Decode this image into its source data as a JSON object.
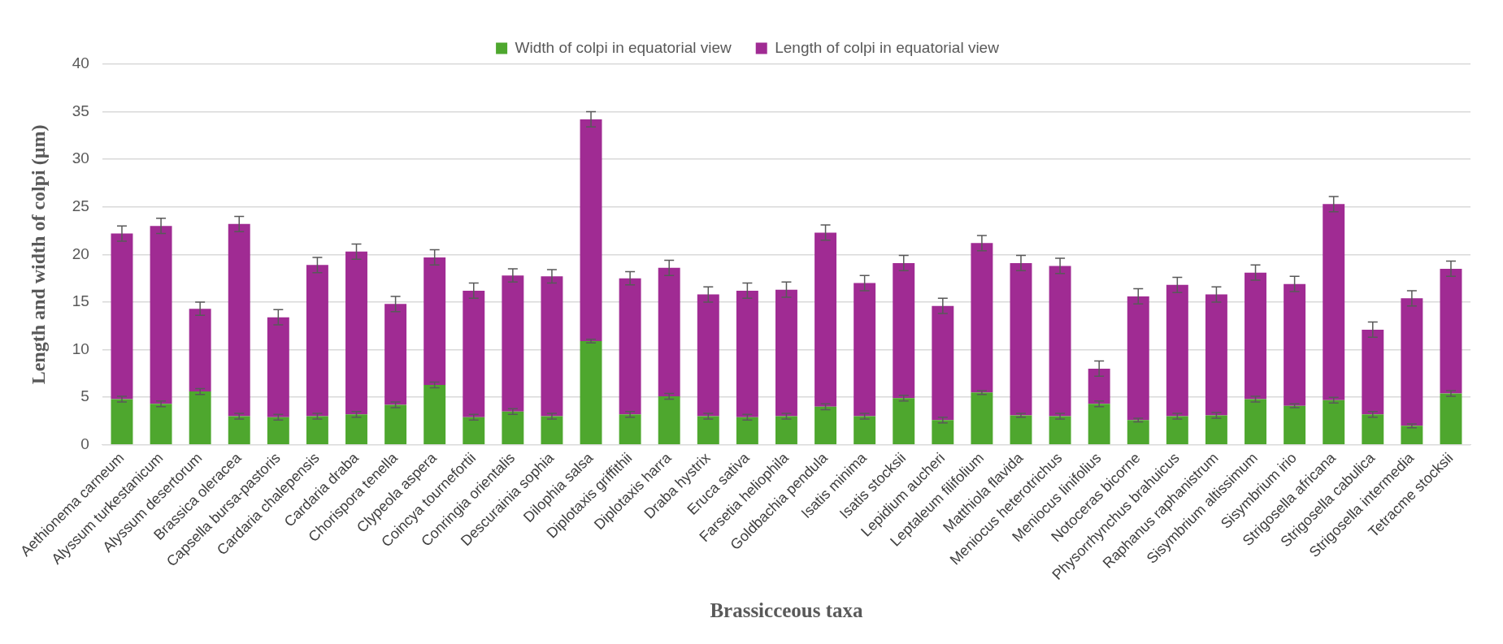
{
  "chart_data": {
    "type": "bar",
    "stacked": true,
    "xlabel": "Brassicceous taxa",
    "ylabel": "Length and width of colpi (µm)",
    "legend": "top",
    "categories": [
      "Aethionema carneum",
      "Alyssum turkestanicum",
      "Alyssum desertorum",
      "Brassica oleracea",
      "Capsella bursa-pastoris",
      "Cardaria chalepensis",
      "Cardaria draba",
      "Chorispora tenella",
      "Clypeola aspera",
      "Coincya tournefortii",
      "Conringia orientalis",
      "Descurainia sophia",
      "Dilophia salsa",
      "Diplotaxis griffithii",
      "Diplotaxis harra",
      "Draba hystrix",
      "Eruca sativa",
      "Farsetia heliophila",
      "Goldbachia pendula",
      "Isatis minima",
      "Isatis stocksii",
      "Lepidium aucheri",
      "Leptaleum filifolium",
      "Matthiola flavida",
      "Meniocus heterotrichus",
      "Meniocus linifolius",
      "Notoceras bicorne",
      "Physorrhynchus brahuicus",
      "Raphanus raphanistrum",
      "Sisymbrium altissimum",
      "Sisymbrium irio",
      "Strigosella africana",
      "Strigosella cabulica",
      "Strigosella intermedia",
      "Tetracme stocksii"
    ],
    "series": [
      {
        "name": "Width of colpi in equatorial view",
        "color": "#4ea72e",
        "values": [
          4.8,
          4.3,
          5.6,
          3.0,
          2.9,
          3.0,
          3.2,
          4.2,
          6.3,
          2.9,
          3.5,
          3.0,
          10.9,
          3.2,
          5.1,
          3.0,
          2.9,
          3.0,
          4.0,
          3.0,
          4.9,
          2.6,
          5.5,
          3.1,
          3.0,
          4.3,
          2.6,
          3.0,
          3.1,
          4.8,
          4.1,
          4.7,
          3.2,
          2.0,
          5.4
        ],
        "errors": [
          0.3,
          0.3,
          0.3,
          0.3,
          0.3,
          0.3,
          0.3,
          0.3,
          0.3,
          0.3,
          0.3,
          0.3,
          0.2,
          0.3,
          0.3,
          0.3,
          0.3,
          0.3,
          0.3,
          0.3,
          0.3,
          0.3,
          0.2,
          0.2,
          0.3,
          0.3,
          0.2,
          0.3,
          0.3,
          0.3,
          0.2,
          0.3,
          0.3,
          0.2,
          0.3
        ]
      },
      {
        "name": "Length of colpi in equatorial view",
        "color": "#a02b93",
        "values": [
          17.4,
          18.7,
          8.7,
          20.2,
          10.5,
          15.9,
          17.1,
          10.6,
          13.4,
          13.3,
          14.3,
          14.7,
          23.3,
          14.3,
          13.5,
          12.8,
          13.3,
          13.3,
          18.3,
          14.0,
          14.2,
          12.0,
          15.7,
          16.0,
          15.8,
          3.7,
          13.0,
          13.8,
          12.7,
          13.3,
          12.8,
          20.6,
          8.9,
          13.4,
          13.1
        ],
        "errors": [
          0.8,
          0.8,
          0.7,
          0.8,
          0.8,
          0.8,
          0.8,
          0.8,
          0.8,
          0.8,
          0.7,
          0.7,
          0.8,
          0.7,
          0.8,
          0.8,
          0.8,
          0.8,
          0.8,
          0.8,
          0.8,
          0.8,
          0.8,
          0.8,
          0.8,
          0.8,
          0.8,
          0.8,
          0.8,
          0.8,
          0.8,
          0.8,
          0.8,
          0.8,
          0.8
        ]
      }
    ],
    "ylim": [
      0,
      40
    ],
    "yticks": [
      0,
      5,
      10,
      15,
      20,
      25,
      30,
      35,
      40
    ],
    "grid": "y"
  }
}
